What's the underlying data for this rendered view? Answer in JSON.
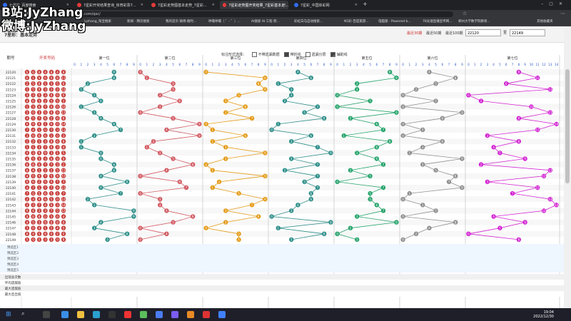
{
  "browser": {
    "tabs": [
      {
        "title": "七星彩_百度搜索",
        "favicon_color": "#2f6cf3"
      },
      {
        "title": "7星彩开奖结果查询_体育彩票7...",
        "favicon_color": "#e33b3b"
      },
      {
        "title": "7星彩走势图基本走势_7星彩...",
        "favicon_color": "#e33b3b"
      },
      {
        "title": "7星彩走势图开奖结果_7星彩基本走...",
        "favicon_color": "#e33b3b",
        "active": true
      },
      {
        "title": "7星彩_中国体彩网",
        "favicon_color": "#2f6cf3"
      }
    ],
    "url": "datachart.500.com/qxc/",
    "bookmarks": [
      "jyzhang_淘宝搜索",
      "新闻 - 网页搜索",
      "我的首页 微博-随时...",
      "呼噜呼噜（ ゜- ゜）...",
      "AI搜索 AI 工程 爬...",
      "彩虹白马自动搜索...",
      "N5彩-百度旅游...",
      "电脑版 - Powered b...",
      "78光速直播宣传网...",
      "郑州大学数学院教育...",
      "其他收藏夹"
    ]
  },
  "watermark": {
    "line1": "B站:JyZhang",
    "line2": "微博:JyZhang"
  },
  "page": {
    "title": "7星彩：基本走势",
    "quick": [
      "最近30期",
      "最近50期",
      "最近100期"
    ],
    "range_from": "22120",
    "range_to": "22149",
    "range_sep": "至",
    "options_label": "标注形式选择：",
    "options": [
      {
        "label": "不带遗漏数据",
        "on": false
      },
      {
        "label": "带折线",
        "on": true
      },
      {
        "label": "遗漏分层",
        "on": false
      },
      {
        "label": "辅助线",
        "on": true
      }
    ],
    "col_issue": "期号",
    "col_draw": "开奖号码",
    "positions": [
      "第一位",
      "第二位",
      "第三位",
      "第四位",
      "第五位",
      "第六位",
      "第七位"
    ],
    "filter_rows": [
      "预选区1",
      "预选区2",
      "预选区3",
      "预选区4",
      "预选区5"
    ],
    "stat_rows": [
      "出现总次数",
      "平均遗漏值",
      "最大遗漏值",
      "最大连出值"
    ],
    "line_colors": [
      "#2f8f8a",
      "#d25a62",
      "#e49b18",
      "#2f8f8a",
      "#27a46c",
      "#8f8f8f",
      "#d223d2"
    ]
  },
  "chart_data": {
    "type": "table",
    "issues": [
      "22120",
      "22121",
      "22122",
      "22123",
      "22124",
      "22125",
      "22126",
      "22127",
      "22128",
      "22129",
      "22130",
      "22131",
      "22132",
      "22133",
      "22134",
      "22135",
      "22136",
      "22137",
      "22138",
      "22139",
      "22140",
      "22141",
      "22142",
      "22143",
      "22144",
      "22145",
      "22146",
      "22147",
      "22148",
      "22149"
    ],
    "pos1": [
      6,
      6,
      2,
      1,
      3,
      4,
      1,
      3,
      4,
      6,
      7,
      3,
      1,
      1,
      4,
      4,
      6,
      6,
      4,
      8,
      4,
      7,
      2,
      3,
      9,
      9,
      4,
      3,
      8,
      5
    ],
    "pos2": [
      0,
      1,
      5,
      5,
      3,
      6,
      3,
      0,
      5,
      9,
      4,
      9,
      2,
      1,
      3,
      5,
      8,
      4,
      0,
      6,
      7,
      0,
      3,
      3,
      4,
      8,
      5,
      0,
      4,
      0
    ],
    "pos3": [
      0,
      9,
      8,
      9,
      5,
      3,
      6,
      3,
      7,
      0,
      1,
      6,
      1,
      3,
      9,
      3,
      0,
      1,
      9,
      2,
      1,
      5,
      9,
      7,
      3,
      8,
      3,
      0,
      5,
      5
    ],
    "pos4": [
      4,
      6,
      1,
      3,
      3,
      2,
      7,
      5,
      8,
      1,
      0,
      6,
      3,
      7,
      9,
      3,
      7,
      2,
      7,
      5,
      7,
      6,
      6,
      4,
      3,
      0,
      9,
      1,
      8,
      3
    ],
    "pos5": [
      8,
      9,
      3,
      3,
      0,
      5,
      0,
      9,
      2,
      6,
      7,
      1,
      8,
      6,
      3,
      6,
      7,
      2,
      5,
      0,
      7,
      5,
      5,
      6,
      7,
      3,
      9,
      2,
      0,
      3
    ],
    "pos6": [
      4,
      8,
      5,
      2,
      0,
      5,
      0,
      9,
      6,
      0,
      3,
      0,
      6,
      3,
      1,
      9,
      3,
      5,
      8,
      7,
      9,
      1,
      0,
      3,
      5,
      0,
      8,
      4,
      2,
      0
    ],
    "pos7": [
      8,
      11,
      6,
      13,
      0,
      2,
      10,
      13,
      8,
      14,
      11,
      3,
      8,
      4,
      5,
      9,
      2,
      13,
      12,
      3,
      11,
      7,
      13,
      14,
      12,
      4,
      9,
      5,
      0,
      8
    ]
  }
}
